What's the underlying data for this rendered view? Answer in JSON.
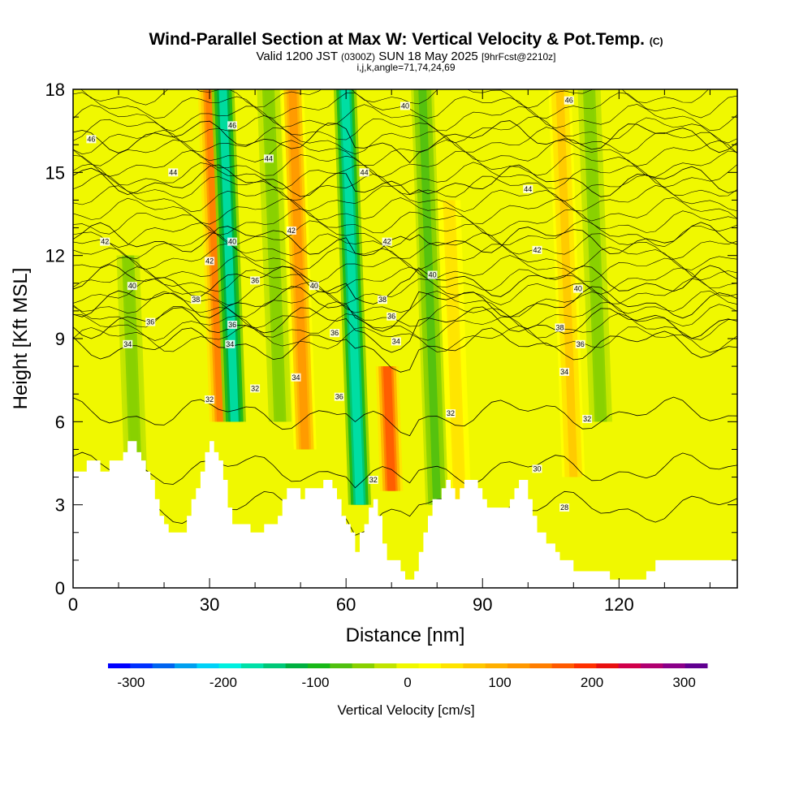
{
  "chart_data": {
    "type": "heatmap",
    "title": "Wind-Parallel Section at Max W: Vertical Velocity & Pot.Temp.",
    "title_mark": "(C)",
    "subtitle_a": "Valid 1200 JST",
    "subtitle_b": "(0300Z)",
    "subtitle_c": "SUN 18 May 2025",
    "subtitle_d": "[9hrFcst@2210z]",
    "subtitle2": "i,j,k,angle=71,74,24,69",
    "xlabel": "Distance [nm]",
    "ylabel": "Height [Kft MSL]",
    "xlim": [
      0,
      146
    ],
    "ylim": [
      0,
      18
    ],
    "x_ticks": [
      "0",
      "30",
      "60",
      "90",
      "120"
    ],
    "y_ticks": [
      "0",
      "3",
      "6",
      "9",
      "12",
      "15",
      "18"
    ],
    "colorbar": {
      "label": "Vertical Velocity [cm/s]",
      "ticks": [
        "-300",
        "-200",
        "-100",
        "0",
        "100",
        "200",
        "300"
      ],
      "range": [
        -325,
        325
      ],
      "colors": [
        "#0000ff",
        "#0030ff",
        "#0064f0",
        "#00a0f0",
        "#00d2f8",
        "#00f0e0",
        "#00e0a8",
        "#00c878",
        "#00b040",
        "#18b818",
        "#50c010",
        "#88d000",
        "#c0e400",
        "#f0f800",
        "#ffff00",
        "#ffe400",
        "#ffc800",
        "#ffb000",
        "#ff9800",
        "#ff7e00",
        "#ff5a00",
        "#ff3000",
        "#e81010",
        "#d0004a",
        "#b00070",
        "#8a0088",
        "#600090"
      ]
    },
    "velocity_features": [
      {
        "x": 32.5,
        "y0": 6,
        "y1": 18,
        "w": 150
      },
      {
        "x": 35.5,
        "y0": 6,
        "y1": 18,
        "w": -160
      },
      {
        "x": 45.5,
        "y0": 6,
        "y1": 18,
        "w": -60
      },
      {
        "x": 51,
        "y0": 5,
        "y1": 18,
        "w": 110
      },
      {
        "x": 63,
        "y0": 3,
        "y1": 18,
        "w": -180
      },
      {
        "x": 70,
        "y0": 3.5,
        "y1": 8,
        "w": 170
      },
      {
        "x": 80,
        "y0": 3,
        "y1": 18,
        "w": -70
      },
      {
        "x": 85,
        "y0": 3,
        "y1": 14,
        "w": 60
      },
      {
        "x": 110,
        "y0": 4,
        "y1": 18,
        "w": 70
      },
      {
        "x": 116,
        "y0": 6,
        "y1": 18,
        "w": -60
      },
      {
        "x": 14,
        "y0": 3,
        "y1": 12,
        "w": -60
      }
    ],
    "theta_contours": [
      {
        "label": "28",
        "y": 2.9
      },
      {
        "label": "30",
        "y": 4.3
      },
      {
        "label": "32",
        "y": 6.3
      },
      {
        "label": "34",
        "y": 8.8
      },
      {
        "label": "36",
        "y": 9.6
      },
      {
        "label": "38",
        "y": 10.3
      },
      {
        "label": "40",
        "y": 11.1
      },
      {
        "label": "42",
        "y": 12.6
      },
      {
        "label": "44",
        "y": 14.7
      },
      {
        "label": "46",
        "y": 16.3
      }
    ],
    "contour_labels": [
      {
        "text": "46",
        "x": 4,
        "y": 16.2
      },
      {
        "text": "44",
        "x": 22,
        "y": 15
      },
      {
        "text": "42",
        "x": 7,
        "y": 12.5
      },
      {
        "text": "40",
        "x": 13,
        "y": 10.9
      },
      {
        "text": "36",
        "x": 17,
        "y": 9.6
      },
      {
        "text": "34",
        "x": 12,
        "y": 8.8
      },
      {
        "text": "38",
        "x": 27,
        "y": 10.4
      },
      {
        "text": "42",
        "x": 30,
        "y": 11.8
      },
      {
        "text": "46",
        "x": 35,
        "y": 16.7
      },
      {
        "text": "40",
        "x": 35,
        "y": 12.5
      },
      {
        "text": "36",
        "x": 40,
        "y": 11.1
      },
      {
        "text": "36",
        "x": 35,
        "y": 9.5
      },
      {
        "text": "34",
        "x": 34.5,
        "y": 8.8
      },
      {
        "text": "32",
        "x": 30,
        "y": 6.8
      },
      {
        "text": "32",
        "x": 40,
        "y": 7.2
      },
      {
        "text": "44",
        "x": 43,
        "y": 15.5
      },
      {
        "text": "42",
        "x": 48,
        "y": 12.9
      },
      {
        "text": "40",
        "x": 53,
        "y": 10.9
      },
      {
        "text": "34",
        "x": 49,
        "y": 7.6
      },
      {
        "text": "36",
        "x": 57.5,
        "y": 9.2
      },
      {
        "text": "36",
        "x": 58.5,
        "y": 6.9
      },
      {
        "text": "44",
        "x": 64,
        "y": 15
      },
      {
        "text": "42",
        "x": 69,
        "y": 12.5
      },
      {
        "text": "38",
        "x": 68,
        "y": 10.4
      },
      {
        "text": "36",
        "x": 70,
        "y": 9.8
      },
      {
        "text": "34",
        "x": 71,
        "y": 8.9
      },
      {
        "text": "40",
        "x": 73,
        "y": 17.4
      },
      {
        "text": "40",
        "x": 79,
        "y": 11.3
      },
      {
        "text": "32",
        "x": 66,
        "y": 3.9
      },
      {
        "text": "32",
        "x": 83,
        "y": 6.3
      },
      {
        "text": "46",
        "x": 109,
        "y": 17.6
      },
      {
        "text": "44",
        "x": 100,
        "y": 14.4
      },
      {
        "text": "42",
        "x": 102,
        "y": 12.2
      },
      {
        "text": "40",
        "x": 111,
        "y": 10.8
      },
      {
        "text": "38",
        "x": 107,
        "y": 9.4
      },
      {
        "text": "36",
        "x": 111.5,
        "y": 8.8
      },
      {
        "text": "34",
        "x": 108,
        "y": 7.8
      },
      {
        "text": "32",
        "x": 113,
        "y": 6.1
      },
      {
        "text": "30",
        "x": 102,
        "y": 4.3
      },
      {
        "text": "28",
        "x": 108,
        "y": 2.9
      }
    ],
    "terrain": [
      [
        0,
        4.2
      ],
      [
        3,
        4.2
      ],
      [
        3,
        4.6
      ],
      [
        6,
        4.6
      ],
      [
        6,
        4.2
      ],
      [
        8,
        4.2
      ],
      [
        8,
        4.6
      ],
      [
        11,
        4.6
      ],
      [
        11,
        4.9
      ],
      [
        12,
        4.9
      ],
      [
        12,
        5.3
      ],
      [
        14,
        5.3
      ],
      [
        14,
        4.9
      ],
      [
        15,
        4.9
      ],
      [
        15,
        4.6
      ],
      [
        16,
        4.6
      ],
      [
        16,
        4.2
      ],
      [
        17,
        4.2
      ],
      [
        17,
        3.9
      ],
      [
        18,
        3.9
      ],
      [
        18,
        3.2
      ],
      [
        19,
        3.2
      ],
      [
        19,
        2.6
      ],
      [
        20,
        2.6
      ],
      [
        20,
        2.3
      ],
      [
        21,
        2.3
      ],
      [
        21,
        2.0
      ],
      [
        25,
        2.0
      ],
      [
        25,
        2.6
      ],
      [
        26,
        2.6
      ],
      [
        26,
        3.2
      ],
      [
        27,
        3.2
      ],
      [
        27,
        3.6
      ],
      [
        28,
        3.6
      ],
      [
        28,
        4.2
      ],
      [
        29,
        4.2
      ],
      [
        29,
        4.9
      ],
      [
        30,
        4.9
      ],
      [
        30,
        5.3
      ],
      [
        31,
        5.3
      ],
      [
        31,
        4.9
      ],
      [
        32,
        4.9
      ],
      [
        32,
        4.6
      ],
      [
        33,
        4.6
      ],
      [
        33,
        3.9
      ],
      [
        34,
        3.9
      ],
      [
        34,
        2.9
      ],
      [
        35,
        2.9
      ],
      [
        35,
        2.3
      ],
      [
        39,
        2.3
      ],
      [
        39,
        2.0
      ],
      [
        42,
        2.0
      ],
      [
        42,
        2.3
      ],
      [
        45,
        2.3
      ],
      [
        45,
        2.6
      ],
      [
        46,
        2.6
      ],
      [
        46,
        3.2
      ],
      [
        47,
        3.2
      ],
      [
        47,
        3.6
      ],
      [
        50,
        3.6
      ],
      [
        50,
        3.2
      ],
      [
        51,
        3.2
      ],
      [
        51,
        3.6
      ],
      [
        55,
        3.6
      ],
      [
        55,
        3.9
      ],
      [
        57,
        3.9
      ],
      [
        57,
        3.6
      ],
      [
        58,
        3.6
      ],
      [
        58,
        3.2
      ],
      [
        59,
        3.2
      ],
      [
        59,
        2.6
      ],
      [
        60,
        2.6
      ],
      [
        60,
        2.3
      ],
      [
        61,
        2.3
      ],
      [
        61,
        2.0
      ],
      [
        62,
        2.0
      ],
      [
        62,
        1.3
      ],
      [
        63,
        1.3
      ],
      [
        63,
        2.0
      ],
      [
        64,
        2.0
      ],
      [
        64,
        2.3
      ],
      [
        65,
        2.3
      ],
      [
        65,
        2.9
      ],
      [
        66,
        2.9
      ],
      [
        66,
        3.2
      ],
      [
        67,
        3.2
      ],
      [
        67,
        2.6
      ],
      [
        68,
        2.6
      ],
      [
        68,
        1.6
      ],
      [
        69,
        1.6
      ],
      [
        69,
        1.0
      ],
      [
        72,
        1.0
      ],
      [
        72,
        0.6
      ],
      [
        73,
        0.6
      ],
      [
        73,
        0.3
      ],
      [
        75,
        0.3
      ],
      [
        75,
        0.6
      ],
      [
        76,
        0.6
      ],
      [
        76,
        1.3
      ],
      [
        77,
        1.3
      ],
      [
        77,
        2.0
      ],
      [
        78,
        2.0
      ],
      [
        78,
        2.6
      ],
      [
        79,
        2.6
      ],
      [
        79,
        3.2
      ],
      [
        81,
        3.2
      ],
      [
        81,
        3.6
      ],
      [
        82,
        3.6
      ],
      [
        82,
        3.9
      ],
      [
        83,
        3.9
      ],
      [
        83,
        3.6
      ],
      [
        84,
        3.6
      ],
      [
        84,
        3.2
      ],
      [
        85,
        3.2
      ],
      [
        85,
        3.6
      ],
      [
        86,
        3.6
      ],
      [
        86,
        3.9
      ],
      [
        89,
        3.9
      ],
      [
        89,
        3.6
      ],
      [
        90,
        3.6
      ],
      [
        90,
        3.2
      ],
      [
        91,
        3.2
      ],
      [
        91,
        2.9
      ],
      [
        96,
        2.9
      ],
      [
        96,
        3.2
      ],
      [
        97,
        3.2
      ],
      [
        97,
        3.6
      ],
      [
        98,
        3.6
      ],
      [
        98,
        3.9
      ],
      [
        100,
        3.9
      ],
      [
        100,
        3.2
      ],
      [
        101,
        3.2
      ],
      [
        101,
        2.6
      ],
      [
        102,
        2.6
      ],
      [
        102,
        2.0
      ],
      [
        104,
        2.0
      ],
      [
        104,
        1.6
      ],
      [
        106,
        1.6
      ],
      [
        106,
        1.3
      ],
      [
        107,
        1.3
      ],
      [
        107,
        1.0
      ],
      [
        110,
        1.0
      ],
      [
        110,
        0.6
      ],
      [
        118,
        0.6
      ],
      [
        118,
        0.3
      ],
      [
        126,
        0.3
      ],
      [
        126,
        0.6
      ],
      [
        128,
        0.6
      ],
      [
        128,
        1.0
      ],
      [
        146,
        1.0
      ]
    ]
  }
}
